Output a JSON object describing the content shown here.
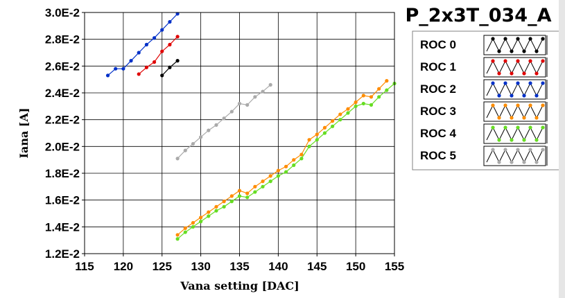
{
  "chart_data": {
    "type": "line",
    "title": "P_2x3T_034_A",
    "xlabel": "Vana setting [DAC]",
    "ylabel": "Iana [A]",
    "xlim": [
      115,
      155
    ],
    "ylim": [
      0.012,
      0.03
    ],
    "x_ticks": [
      115,
      120,
      125,
      130,
      135,
      140,
      145,
      150,
      155
    ],
    "x_tick_labels": [
      "115",
      "120",
      "125",
      "130",
      "135",
      "140",
      "145",
      "150",
      "155"
    ],
    "y_ticks": [
      0.012,
      0.014,
      0.016,
      0.018,
      0.02,
      0.022,
      0.024,
      0.026,
      0.028,
      0.03
    ],
    "y_tick_labels": [
      "1.2E-2",
      "1.4E-2",
      "1.6E-2",
      "1.8E-2",
      "2.0E-2",
      "2.2E-2",
      "2.4E-2",
      "2.6E-2",
      "2.8E-2",
      "3.0E-2"
    ],
    "grid": true,
    "legend_position": "right",
    "series": [
      {
        "name": "ROC 0",
        "color": "#000000",
        "x": [
          125,
          126,
          127
        ],
        "y": [
          0.0253,
          0.0259,
          0.0264
        ]
      },
      {
        "name": "ROC 1",
        "color": "#e00000",
        "x": [
          122,
          123,
          124,
          125,
          126,
          127
        ],
        "y": [
          0.0254,
          0.0259,
          0.0263,
          0.0271,
          0.0276,
          0.0282
        ]
      },
      {
        "name": "ROC 2",
        "color": "#0030c8",
        "x": [
          118,
          119,
          120,
          121,
          122,
          123,
          124,
          125,
          126,
          127
        ],
        "y": [
          0.0253,
          0.0258,
          0.0258,
          0.0264,
          0.027,
          0.0276,
          0.0281,
          0.0287,
          0.0293,
          0.0299
        ]
      },
      {
        "name": "ROC 3",
        "color": "#ff8c00",
        "x": [
          127,
          128,
          129,
          130,
          131,
          132,
          133,
          134,
          135,
          136,
          137,
          138,
          139,
          140,
          141,
          142,
          143,
          144,
          145,
          146,
          147,
          148,
          149,
          150,
          151,
          152,
          153,
          154
        ],
        "y": [
          0.0134,
          0.0139,
          0.0143,
          0.0147,
          0.0151,
          0.0155,
          0.0159,
          0.0163,
          0.0167,
          0.0165,
          0.017,
          0.0174,
          0.0178,
          0.0182,
          0.0185,
          0.019,
          0.0194,
          0.0205,
          0.0209,
          0.0214,
          0.0219,
          0.0224,
          0.0228,
          0.0233,
          0.0238,
          0.0237,
          0.0243,
          0.0249
        ]
      },
      {
        "name": "ROC 4",
        "color": "#66dd22",
        "x": [
          127,
          128,
          129,
          130,
          131,
          132,
          133,
          134,
          135,
          136,
          137,
          138,
          139,
          140,
          141,
          142,
          143,
          144,
          145,
          146,
          147,
          148,
          149,
          150,
          151,
          152,
          153,
          154,
          155
        ],
        "y": [
          0.0131,
          0.0136,
          0.014,
          0.0144,
          0.0148,
          0.0152,
          0.0155,
          0.0159,
          0.0163,
          0.0162,
          0.0166,
          0.017,
          0.0174,
          0.0178,
          0.0181,
          0.0186,
          0.0191,
          0.02,
          0.0205,
          0.021,
          0.0215,
          0.022,
          0.0225,
          0.023,
          0.0232,
          0.0231,
          0.0237,
          0.0242,
          0.0247
        ]
      },
      {
        "name": "ROC 5",
        "color": "#aaaaaa",
        "x": [
          127,
          128,
          129,
          130,
          131,
          132,
          133,
          134,
          135,
          136,
          137,
          138,
          139
        ],
        "y": [
          0.0191,
          0.0197,
          0.0202,
          0.0207,
          0.0212,
          0.0216,
          0.0221,
          0.0226,
          0.0232,
          0.0231,
          0.0237,
          0.0241,
          0.0246
        ]
      }
    ]
  }
}
